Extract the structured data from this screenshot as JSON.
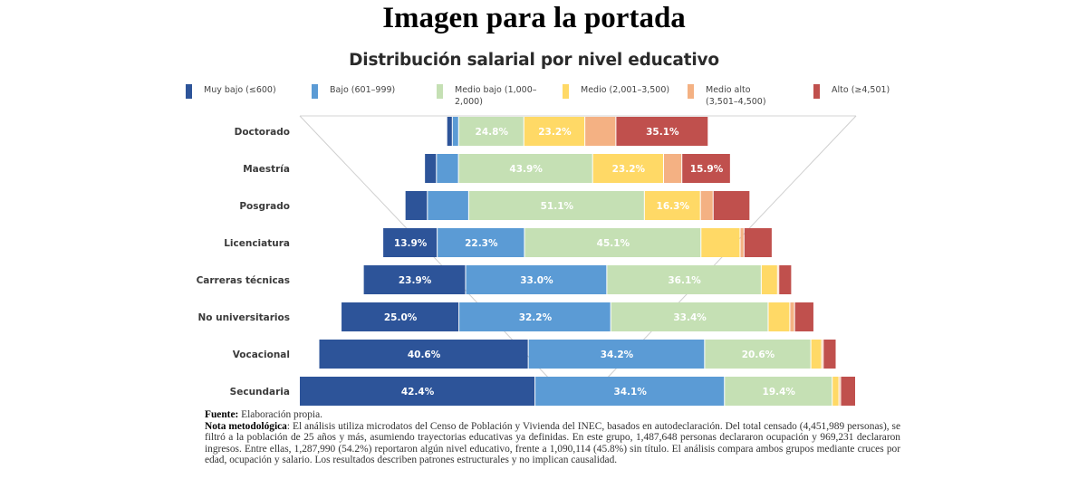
{
  "page_title": "Imagen para la portada",
  "chart_data": {
    "type": "bar",
    "orientation": "horizontal",
    "stacked": true,
    "title": "Distribución salarial por nivel educativo",
    "xlabel": "",
    "ylabel": "",
    "grid": false,
    "legend_position": "top",
    "categories": [
      "Doctorado",
      "Maestría",
      "Posgrado",
      "Licenciatura",
      "Carreras técnicas",
      "No universitarios",
      "Vocacional",
      "Secundaria"
    ],
    "relative_bar_length": [
      0.47,
      0.55,
      0.62,
      0.7,
      0.77,
      0.85,
      0.93,
      1.0
    ],
    "series": [
      {
        "name": "Muy bajo (≤600)",
        "color": "#2d5499",
        "values": [
          2.1,
          3.9,
          6.5,
          13.9,
          23.9,
          25.0,
          40.6,
          42.4
        ],
        "labels": [
          "",
          "",
          "",
          "13.9%",
          "23.9%",
          "25.0%",
          "40.6%",
          "42.4%"
        ]
      },
      {
        "name": "Bajo (601–999)",
        "color": "#5b9bd5",
        "values": [
          2.4,
          7.2,
          12.0,
          22.3,
          33.0,
          32.2,
          34.2,
          34.1
        ],
        "labels": [
          "",
          "",
          "",
          "22.3%",
          "33.0%",
          "32.2%",
          "34.2%",
          "34.1%"
        ]
      },
      {
        "name": "Medio bajo (1,000–2,000)",
        "color": "#c5e0b4",
        "values": [
          24.8,
          43.9,
          51.1,
          45.1,
          36.1,
          33.4,
          20.6,
          19.4
        ],
        "labels": [
          "24.8%",
          "43.9%",
          "51.1%",
          "45.1%",
          "36.1%",
          "33.4%",
          "20.6%",
          "19.4%"
        ]
      },
      {
        "name": "Medio (2,001–3,500)",
        "color": "#ffd966",
        "values": [
          23.2,
          23.2,
          16.3,
          10.0,
          3.8,
          4.6,
          2.1,
          1.2
        ],
        "labels": [
          "23.2%",
          "23.2%",
          "16.3%",
          "",
          "",
          "",
          "",
          ""
        ]
      },
      {
        "name": "Medio alto (3,501–4,500)",
        "color": "#f4b183",
        "values": [
          11.8,
          6.0,
          3.7,
          1.0,
          0.3,
          1.0,
          0.3,
          0.3
        ],
        "labels": [
          "",
          "",
          "",
          "",
          "",
          "",
          "",
          ""
        ]
      },
      {
        "name": "Alto (≥4,501)",
        "color": "#c0504d",
        "values": [
          35.1,
          15.9,
          10.7,
          7.2,
          3.0,
          4.1,
          2.5,
          2.7
        ],
        "labels": [
          "35.1%",
          "15.9%",
          "",
          "",
          "",
          "",
          "",
          ""
        ]
      }
    ]
  },
  "notes": {
    "fuente_label": "Fuente:",
    "fuente_text": " Elaboración propia.",
    "nota_label_1": "Nota ",
    "nota_label_2": "metodológica",
    "nota_text": ": El análisis utiliza microdatos del Censo de Población y Vivienda del INEC, basados en autodeclaración. Del total censado (4,451,989 personas), se filtró a la población de 25 años y más, asumiendo trayectorias educativas ya definidas. En este grupo, 1,487,648 personas declararon ocupación y 969,231 declararon ingresos. Entre ellas, 1,287,990 (54.2%) reportaron algún nivel educativo, frente a 1,090,114 (45.8%) sin título. El análisis compara ambos grupos mediante cruces por edad, ocupación y salario. Los resultados describen patrones estructurales y no implican causalidad."
  }
}
